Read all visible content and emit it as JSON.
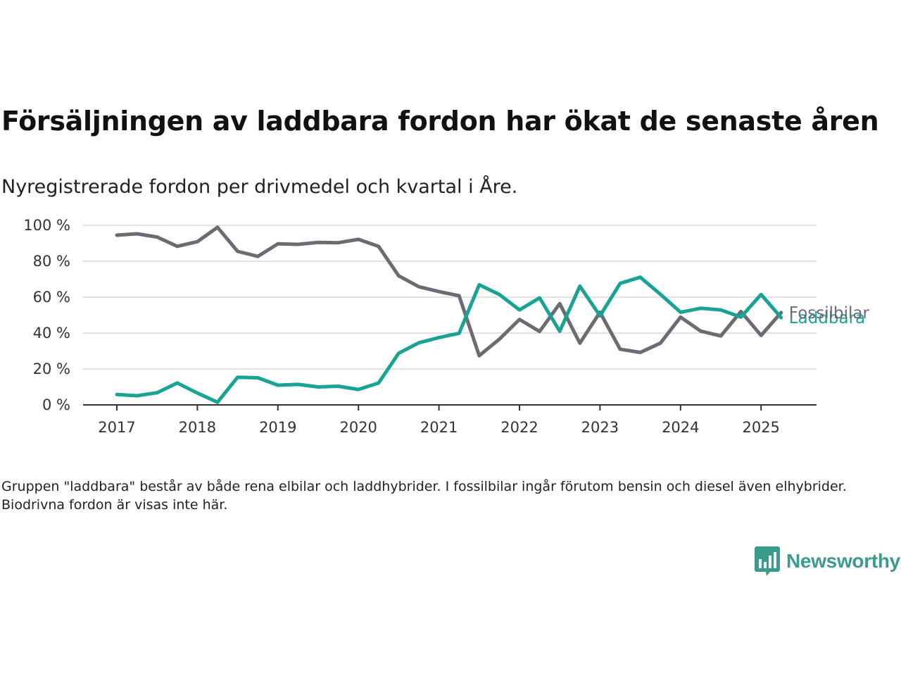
{
  "title": "Försäljningen av laddbara fordon har ökat de senaste åren",
  "subtitle": "Nyregistrerade fordon per drivmedel och kvartal i Åre.",
  "note": "Gruppen \"laddbara\" består av både rena elbilar och laddhybrider. I fossilbilar ingår förutom bensin och diesel även elhybrider. Biodrivna fordon är visas inte här.",
  "brand": "Newsworthy",
  "chart_data": {
    "type": "line",
    "title": "Försäljningen av laddbara fordon har ökat de senaste åren",
    "subtitle": "Nyregistrerade fordon per drivmedel och kvartal i Åre.",
    "ylim": [
      0,
      100
    ],
    "yticks": [
      0,
      20,
      40,
      60,
      80,
      100
    ],
    "ytick_labels": [
      "0 %",
      "20 %",
      "40 %",
      "60 %",
      "80 %",
      "100 %"
    ],
    "xlim": [
      "2017Q1",
      "2025Q2"
    ],
    "xtick_labels": [
      "2017",
      "2018",
      "2019",
      "2020",
      "2021",
      "2022",
      "2023",
      "2024",
      "2025"
    ],
    "grid": "horizontal",
    "legend": "labels at line ends",
    "x": [
      "2017Q1",
      "2017Q2",
      "2017Q3",
      "2017Q4",
      "2018Q1",
      "2018Q2",
      "2018Q3",
      "2018Q4",
      "2019Q1",
      "2019Q2",
      "2019Q3",
      "2019Q4",
      "2020Q1",
      "2020Q2",
      "2020Q3",
      "2020Q4",
      "2021Q1",
      "2021Q2",
      "2021Q3",
      "2021Q4",
      "2022Q1",
      "2022Q2",
      "2022Q3",
      "2022Q4",
      "2023Q1",
      "2023Q2",
      "2023Q3",
      "2023Q4",
      "2024Q1",
      "2024Q2",
      "2024Q3",
      "2024Q4",
      "2025Q1",
      "2025Q2"
    ],
    "series": [
      {
        "name": "Fossilbilar",
        "color": "#6b6b73",
        "values": [
          94.5,
          95.3,
          93.5,
          88.3,
          90.9,
          98.9,
          85.5,
          82.7,
          89.7,
          89.4,
          90.5,
          90.3,
          92.2,
          88.3,
          71.9,
          65.8,
          63.1,
          60.8,
          27.4,
          36.6,
          47.6,
          40.9,
          56.4,
          34.4,
          51.6,
          31.0,
          29.2,
          34.4,
          48.9,
          41.1,
          38.4,
          52.0,
          38.7,
          51.4
        ]
      },
      {
        "name": "Laddbara",
        "color": "#19a394",
        "values": [
          5.8,
          5.1,
          6.8,
          12.2,
          6.6,
          1.5,
          15.4,
          15.1,
          11.0,
          11.4,
          10.0,
          10.4,
          8.6,
          12.2,
          28.8,
          34.6,
          37.5,
          39.9,
          66.9,
          61.5,
          52.9,
          59.6,
          41.0,
          66.1,
          49.6,
          67.7,
          71.1,
          61.6,
          51.6,
          53.8,
          52.9,
          48.9,
          61.5,
          48.6
        ]
      }
    ]
  }
}
